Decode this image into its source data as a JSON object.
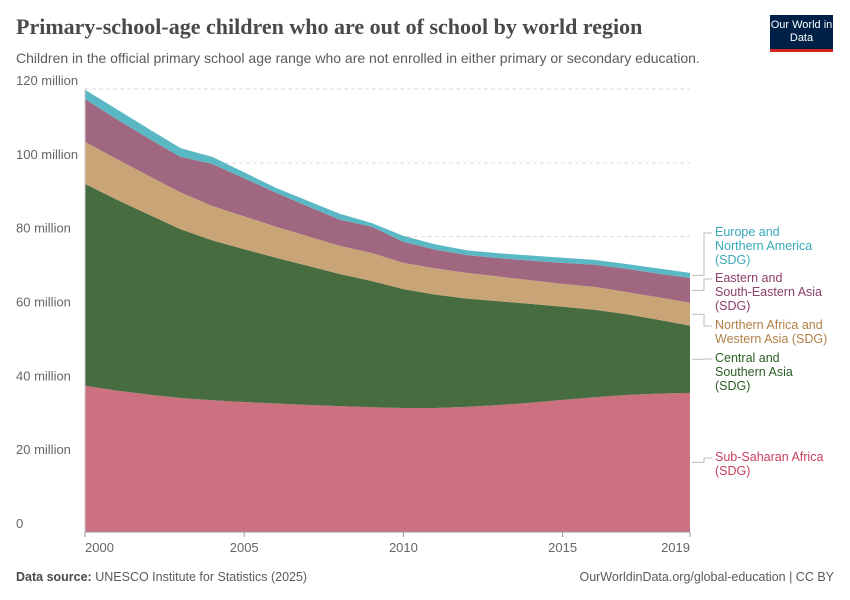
{
  "header": {
    "title": "Primary-school-age children who are out of school by world region",
    "subtitle": "Children in the official primary school age range who are not enrolled in either primary or secondary education.",
    "logo_text": "Our World in Data"
  },
  "footer": {
    "source_label": "Data source:",
    "source": "UNESCO Institute for Statistics (2025)",
    "link": "OurWorldinData.org/global-education | CC BY"
  },
  "chart_data": {
    "type": "area",
    "stacked": true,
    "title": "Primary-school-age children who are out of school by world region",
    "ylim": [
      0,
      120000000
    ],
    "yticks": [
      0,
      20000000,
      40000000,
      60000000,
      80000000,
      100000000,
      120000000
    ],
    "ytick_labels": [
      "0",
      "20 million",
      "40 million",
      "60 million",
      "80 million",
      "100 million",
      "120 million"
    ],
    "xticks": [
      2000,
      2005,
      2010,
      2015,
      2019
    ],
    "xtick_labels": [
      "2000",
      "2005",
      "2010",
      "2015",
      "2019"
    ],
    "grid": "horizontal dashed",
    "legend": "right, inline labels",
    "x": [
      2000,
      2001,
      2002,
      2003,
      2004,
      2005,
      2006,
      2007,
      2008,
      2009,
      2010,
      2011,
      2012,
      2013,
      2014,
      2015,
      2016,
      2017,
      2018,
      2019
    ],
    "series": [
      {
        "name": "Sub-Saharan Africa (SDG)",
        "label_lines": [
          "Sub-Saharan Africa",
          "(SDG)"
        ],
        "color": "#cc7180",
        "label_color": "#c9405f",
        "values": [
          39.6,
          38.3,
          37.2,
          36.3,
          35.7,
          35.2,
          34.8,
          34.4,
          34.1,
          33.8,
          33.6,
          33.6,
          33.9,
          34.4,
          35.0,
          35.8,
          36.5,
          37.1,
          37.5,
          37.7
        ]
      },
      {
        "name": "Central and Southern Asia (SDG)",
        "label_lines": [
          "Central and",
          "Southern Asia",
          "(SDG)"
        ],
        "color": "#476c40",
        "label_color": "#2b5e24",
        "values": [
          54.7,
          51.7,
          48.8,
          45.7,
          43.3,
          41.4,
          39.5,
          37.7,
          35.8,
          34.2,
          32.2,
          30.7,
          29.3,
          28.1,
          26.8,
          25.2,
          23.7,
          21.9,
          20.0,
          18.2
        ]
      },
      {
        "name": "Northern Africa and Western Asia (SDG)",
        "label_lines": [
          "Northern Africa and",
          "Western Asia (SDG)"
        ],
        "color": "#c8a477",
        "label_color": "#b07f45",
        "values": [
          11.4,
          11.0,
          10.5,
          10.0,
          9.3,
          8.9,
          8.4,
          8.0,
          7.6,
          7.6,
          7.1,
          7.1,
          7.0,
          6.7,
          6.4,
          6.2,
          6.2,
          6.0,
          6.1,
          6.2
        ]
      },
      {
        "name": "Eastern and South-Eastern Asia (SDG)",
        "label_lines": [
          "Eastern and",
          "South-Eastern Asia",
          "(SDG)"
        ],
        "color": "#a06780",
        "label_color": "#8c3f6a",
        "values": [
          11.6,
          10.8,
          10.1,
          9.6,
          11.4,
          10.3,
          9.2,
          8.1,
          7.1,
          7.1,
          5.7,
          5.1,
          4.8,
          5.0,
          5.3,
          5.7,
          6.0,
          6.3,
          6.4,
          6.7
        ]
      },
      {
        "name": "Europe and Northern America (SDG)",
        "label_lines": [
          "Europe and",
          "Northern America",
          "(SDG)"
        ],
        "color": "#5ab8c5",
        "label_color": "#38a9b8",
        "values": [
          2.5,
          2.7,
          2.6,
          2.4,
          1.9,
          1.6,
          1.3,
          1.5,
          1.6,
          1.0,
          1.6,
          1.4,
          1.3,
          1.3,
          1.4,
          1.4,
          1.3,
          1.3,
          1.4,
          1.4
        ]
      }
    ],
    "value_unit": "million children"
  }
}
